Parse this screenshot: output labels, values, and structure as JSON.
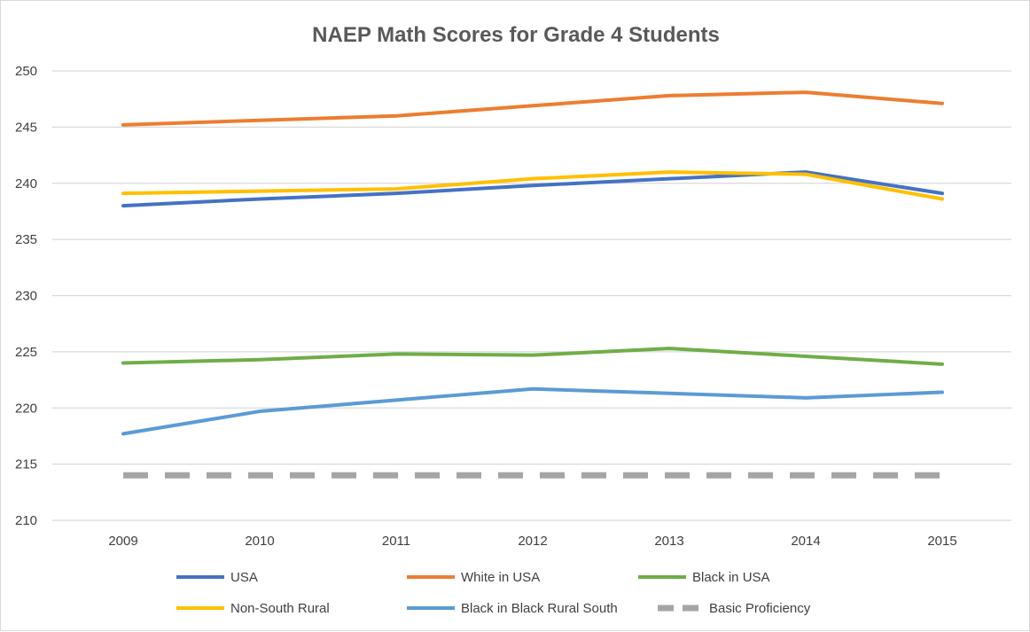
{
  "chart_data": {
    "type": "line",
    "title": "NAEP Math Scores for Grade 4 Students",
    "xlabel": "",
    "ylabel": "",
    "categories": [
      "2009",
      "2010",
      "2011",
      "2012",
      "2013",
      "2014",
      "2015"
    ],
    "ylim": [
      210,
      250
    ],
    "yticks": [
      210,
      215,
      220,
      225,
      230,
      235,
      240,
      245,
      250
    ],
    "grid": true,
    "legend_position": "bottom",
    "series": [
      {
        "name": "USA",
        "color": "#4472c4",
        "dash": "solid",
        "values": [
          238,
          238.6,
          239.1,
          239.8,
          240.4,
          241,
          239.1
        ]
      },
      {
        "name": "White in USA",
        "color": "#ed7d31",
        "dash": "solid",
        "values": [
          245.2,
          245.6,
          246,
          246.9,
          247.8,
          248.1,
          247.1
        ]
      },
      {
        "name": "Black in USA",
        "color": "#70ad47",
        "dash": "solid",
        "values": [
          224,
          224.3,
          224.8,
          224.7,
          225.3,
          224.6,
          223.9
        ]
      },
      {
        "name": "Non-South Rural",
        "color": "#ffc000",
        "dash": "solid",
        "values": [
          239.1,
          239.3,
          239.5,
          240.4,
          241,
          240.8,
          238.6
        ]
      },
      {
        "name": "Black in Black Rural South",
        "color": "#5b9bd5",
        "dash": "solid",
        "values": [
          217.7,
          219.7,
          220.7,
          221.7,
          221.3,
          220.9,
          221.4
        ]
      },
      {
        "name": "Basic Proficiency",
        "color": "#a5a5a5",
        "dash": "dashed",
        "values": [
          214,
          214,
          214,
          214,
          214,
          214,
          214
        ]
      }
    ]
  }
}
